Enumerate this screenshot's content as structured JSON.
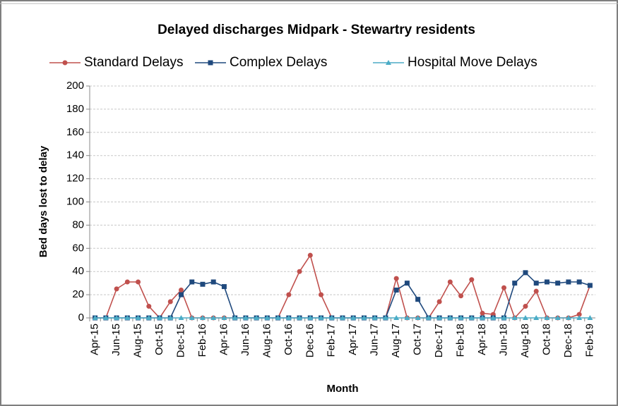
{
  "chart_data": {
    "type": "line",
    "title": "Delayed discharges Midpark - Stewartry residents",
    "x_label": "Month",
    "y_label": "Bed days lost to delay",
    "categories": [
      "Apr-15",
      null,
      "Jun-15",
      null,
      "Aug-15",
      null,
      "Oct-15",
      null,
      "Dec-15",
      null,
      "Feb-16",
      null,
      "Apr-16",
      null,
      "Jun-16",
      null,
      "Aug-16",
      null,
      "Oct-16",
      null,
      "Dec-16",
      null,
      "Feb-17",
      null,
      "Apr-17",
      null,
      "Jun-17",
      null,
      "Aug-17",
      null,
      "Oct-17",
      null,
      "Dec-17",
      null,
      "Feb-18",
      null,
      "Apr-18",
      null,
      "Jun-18",
      null,
      "Aug-18",
      null,
      "Oct-18",
      null,
      "Dec-18",
      null,
      "Feb-19"
    ],
    "series": [
      {
        "name": "Standard Delays",
        "color": "#c0504d",
        "marker": "circle",
        "values": [
          0,
          0,
          25,
          31,
          31,
          10,
          0,
          14,
          24,
          0,
          0,
          0,
          0,
          0,
          0,
          0,
          0,
          0,
          20,
          40,
          54,
          20,
          0,
          0,
          0,
          0,
          0,
          0,
          34,
          0,
          0,
          0,
          14,
          31,
          19,
          33,
          4,
          3,
          26,
          0,
          10,
          23,
          0,
          0,
          0,
          3,
          28
        ]
      },
      {
        "name": "Complex Delays",
        "color": "#1f497d",
        "marker": "square",
        "values": [
          0,
          0,
          0,
          0,
          0,
          0,
          0,
          0,
          20,
          31,
          29,
          31,
          27,
          0,
          0,
          0,
          0,
          0,
          0,
          0,
          0,
          0,
          0,
          0,
          0,
          0,
          0,
          0,
          24,
          30,
          16,
          0,
          0,
          0,
          0,
          0,
          0,
          0,
          0,
          30,
          39,
          30,
          31,
          30,
          31,
          31,
          28
        ]
      },
      {
        "name": "Hospital Move Delays",
        "color": "#4bacc6",
        "marker": "triangle",
        "values": [
          0,
          0,
          0,
          0,
          0,
          0,
          0,
          0,
          0,
          0,
          0,
          0,
          0,
          0,
          0,
          0,
          0,
          0,
          0,
          0,
          0,
          0,
          0,
          0,
          0,
          0,
          0,
          0,
          0,
          0,
          0,
          0,
          0,
          0,
          0,
          0,
          0,
          0,
          0,
          0,
          0,
          0,
          0,
          0,
          0,
          0,
          0
        ]
      }
    ],
    "ylim": [
      0,
      200
    ],
    "yticks": [
      0,
      20,
      40,
      60,
      80,
      100,
      120,
      140,
      160,
      180,
      200
    ],
    "grid": true,
    "legend": "top"
  }
}
